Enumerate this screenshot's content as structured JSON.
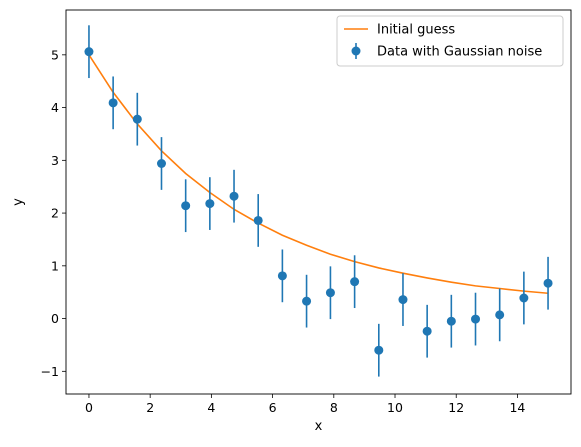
{
  "chart_data": {
    "type": "scatter",
    "xlabel": "x",
    "ylabel": "y",
    "xlim": [
      -0.75,
      15.75
    ],
    "ylim": [
      -1.43,
      5.85
    ],
    "xticks": [
      0,
      2,
      4,
      6,
      8,
      10,
      12,
      14
    ],
    "yticks": [
      -1,
      0,
      1,
      2,
      3,
      4,
      5
    ],
    "ytick_labels": [
      "−1",
      "0",
      "1",
      "2",
      "3",
      "4",
      "5"
    ],
    "grid": false,
    "legend_position": "upper right",
    "series": [
      {
        "name": "Initial guess",
        "kind": "line",
        "color": "#ff7f0e",
        "x": [
          0.0,
          0.79,
          1.58,
          2.37,
          3.16,
          3.95,
          4.74,
          5.53,
          6.32,
          7.11,
          7.89,
          8.68,
          9.47,
          10.26,
          11.05,
          11.84,
          12.63,
          13.42,
          14.21,
          15.0
        ],
        "y": [
          5.0,
          4.29,
          3.69,
          3.18,
          2.75,
          2.39,
          2.07,
          1.81,
          1.58,
          1.39,
          1.22,
          1.08,
          0.96,
          0.86,
          0.77,
          0.69,
          0.62,
          0.57,
          0.52,
          0.48
        ]
      },
      {
        "name": "Data with Gaussian noise",
        "kind": "errorbar",
        "color": "#1f77b4",
        "x": [
          0.0,
          0.79,
          1.58,
          2.37,
          3.16,
          3.95,
          4.74,
          5.53,
          6.32,
          7.11,
          7.89,
          8.68,
          9.47,
          10.26,
          11.05,
          11.84,
          12.63,
          13.42,
          14.21,
          15.0
        ],
        "y": [
          5.06,
          4.09,
          3.78,
          2.94,
          2.14,
          2.18,
          2.32,
          1.86,
          0.81,
          0.33,
          0.49,
          0.7,
          -0.6,
          0.36,
          -0.24,
          -0.05,
          -0.01,
          0.07,
          0.39,
          0.67
        ],
        "yerr": 0.5
      }
    ]
  }
}
